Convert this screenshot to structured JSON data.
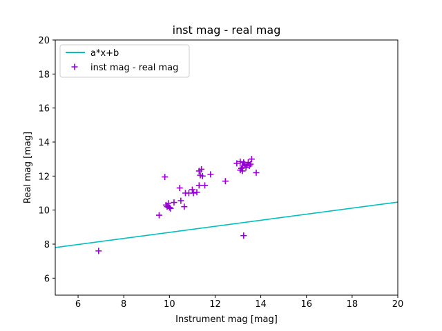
{
  "chart_data": {
    "type": "scatter",
    "title": "inst mag - real mag",
    "xlabel": "Instrument mag [mag]",
    "ylabel": "Real mag [mag]",
    "xlim": [
      5,
      20
    ],
    "ylim": [
      5,
      20
    ],
    "xticks": [
      6,
      8,
      10,
      12,
      14,
      16,
      18,
      20
    ],
    "yticks": [
      6,
      8,
      10,
      12,
      14,
      16,
      18,
      20
    ],
    "grid": false,
    "legend_position": "top-left",
    "fit_line": {
      "name": "a*x+b",
      "color": "#00bfbf",
      "x": [
        5,
        20
      ],
      "y": [
        7.8,
        10.47
      ]
    },
    "series": [
      {
        "name": "inst mag - real mag",
        "color": "#9400d3",
        "marker": "plus",
        "points": [
          [
            6.9,
            7.6
          ],
          [
            9.55,
            9.7
          ],
          [
            9.8,
            11.95
          ],
          [
            9.85,
            10.3
          ],
          [
            9.9,
            10.2
          ],
          [
            9.95,
            10.4
          ],
          [
            10.0,
            10.15
          ],
          [
            10.05,
            10.1
          ],
          [
            10.2,
            10.45
          ],
          [
            10.45,
            11.3
          ],
          [
            10.5,
            10.55
          ],
          [
            10.65,
            10.2
          ],
          [
            10.7,
            11.0
          ],
          [
            10.85,
            11.0
          ],
          [
            11.0,
            11.2
          ],
          [
            11.05,
            11.0
          ],
          [
            11.2,
            11.05
          ],
          [
            11.3,
            11.45
          ],
          [
            11.3,
            12.3
          ],
          [
            11.35,
            12.05
          ],
          [
            11.4,
            12.4
          ],
          [
            11.45,
            12.0
          ],
          [
            11.55,
            11.45
          ],
          [
            11.8,
            12.1
          ],
          [
            12.45,
            11.7
          ],
          [
            12.95,
            12.75
          ],
          [
            13.1,
            12.85
          ],
          [
            13.1,
            12.35
          ],
          [
            13.15,
            12.45
          ],
          [
            13.2,
            12.6
          ],
          [
            13.2,
            12.3
          ],
          [
            13.25,
            12.8
          ],
          [
            13.25,
            8.5
          ],
          [
            13.3,
            12.7
          ],
          [
            13.35,
            12.5
          ],
          [
            13.4,
            12.65
          ],
          [
            13.45,
            12.8
          ],
          [
            13.5,
            12.6
          ],
          [
            13.55,
            12.7
          ],
          [
            13.6,
            13.0
          ],
          [
            13.8,
            12.2
          ]
        ]
      }
    ]
  }
}
